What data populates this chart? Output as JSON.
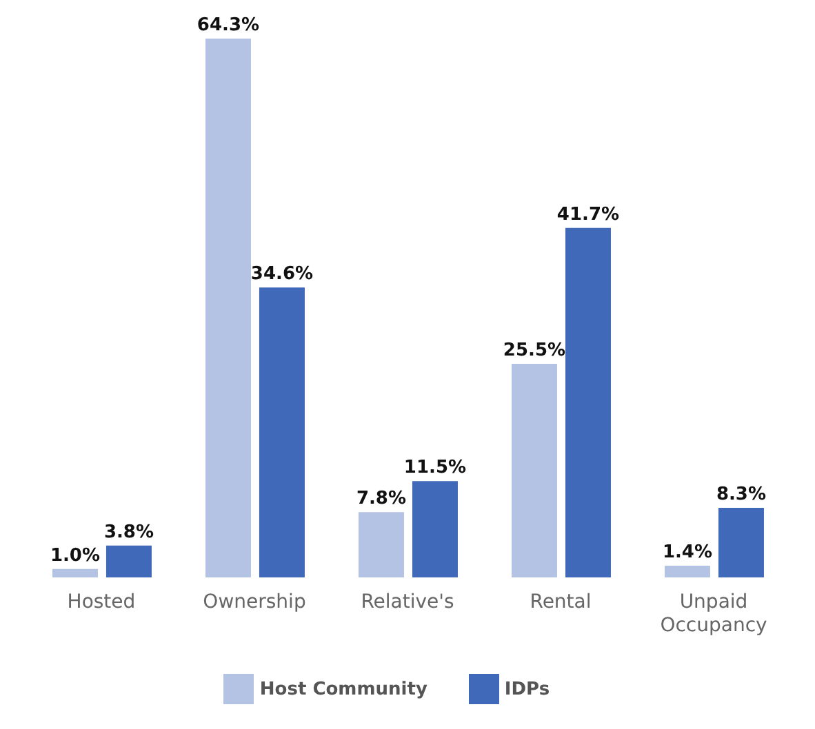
{
  "chart_data": {
    "type": "bar",
    "categories": [
      "Hosted",
      "Ownership",
      "Relative's",
      "Rental",
      "Unpaid Occupancy"
    ],
    "series": [
      {
        "name": "Host Community",
        "color": "#b4c3e3",
        "values": [
          1.0,
          64.3,
          7.8,
          25.5,
          1.4
        ],
        "value_labels": [
          "1.0%",
          "64.3%",
          "7.8%",
          "25.5%",
          "1.4%"
        ]
      },
      {
        "name": "IDPs",
        "color": "#4169b9",
        "values": [
          3.8,
          34.6,
          11.5,
          41.7,
          8.3
        ],
        "value_labels": [
          "3.8%",
          "34.6%",
          "11.5%",
          "41.7%",
          "8.3%"
        ]
      }
    ],
    "legend": "bottom"
  }
}
